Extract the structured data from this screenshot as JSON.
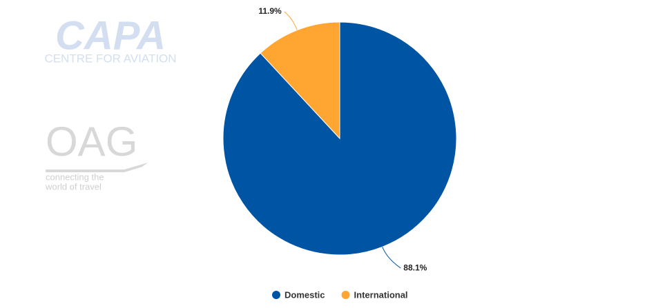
{
  "chart_data": {
    "type": "pie",
    "categories": [
      "Domestic",
      "International"
    ],
    "values": [
      88.1,
      11.9
    ],
    "value_labels": [
      "88.1%",
      "11.9%"
    ],
    "colors": [
      "#0054a4",
      "#fea532"
    ],
    "legend": "bottom",
    "logos": [
      "CAPA",
      "CENTRE FOR AVIATION",
      "OAG",
      "connecting the",
      "world of travel"
    ]
  }
}
